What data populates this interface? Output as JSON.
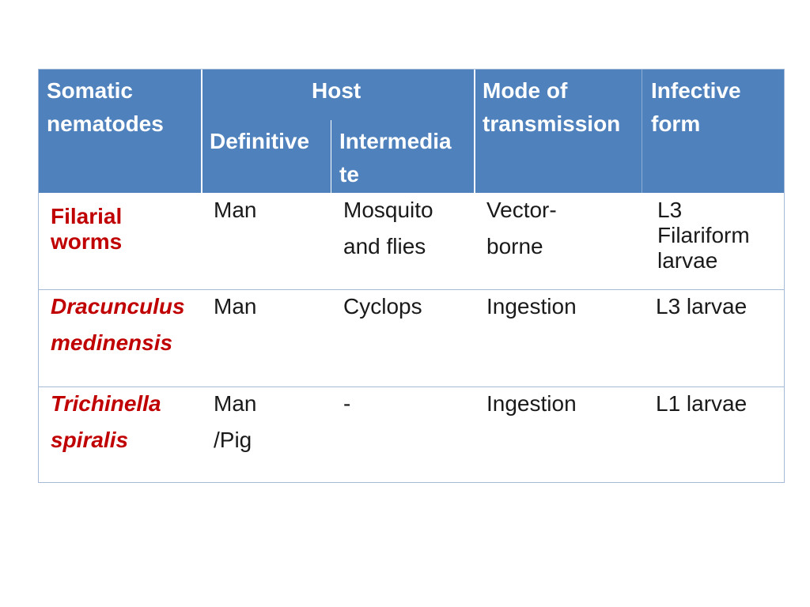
{
  "header": {
    "somatic": "Somatic\nnematodes",
    "host": "Host",
    "definitive": "Definitive",
    "intermediate": "Intermedia\nte",
    "mode": "Mode of\ntransmission",
    "infective": "Infective\nform"
  },
  "rows": [
    {
      "nematode": "Filarial\n worms",
      "definitive": "Man",
      "intermediate": "Mosquito\n and flies",
      "mode": "Vector-\nborne",
      "infective": "L3\nFilariform\n larvae"
    },
    {
      "nematode": "Dracunculus\nmedinensis",
      "definitive": "Man",
      "intermediate": "Cyclops",
      "mode": "Ingestion",
      "infective": "L3 larvae"
    },
    {
      "nematode": "Trichinella\nspiralis",
      "definitive": "Man\n/Pig",
      "intermediate": "-",
      "mode": "Ingestion",
      "infective": "L1 larvae"
    }
  ],
  "colors": {
    "header_bg": "#4f81bd",
    "nematode_text": "#c00000",
    "border": "#a6b9d6"
  }
}
